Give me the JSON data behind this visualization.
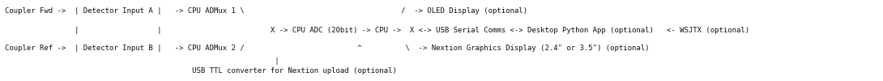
{
  "line1": "Coupler Fwd ->  | Detector Input A |   -> CPU ADMux 1 \\                                    /  -> OLED Display (optional)",
  "line2": "                |                  |                         X -> CPU ADC (20bit) -> CPU ->  X <-> USB Serial Comms <-> Desktop Python App (optional)   <- WSJTX (optional)",
  "line3": "Coupler Ref ->  | Detector Input B |   -> CPU ADMux 2 /                          ^          \\  -> Nextion Graphics Display (2.4\" or 3.5\") (optional)",
  "line4": "                                                              |",
  "line5": "                                           USB TTL converter for Nextion upload (optional)",
  "font_family": "monospace",
  "font_size": 6.5,
  "text_color": "#111111",
  "bg_color": "#ffffff",
  "fig_width": 10.9,
  "fig_height": 1.0,
  "dpi": 100
}
